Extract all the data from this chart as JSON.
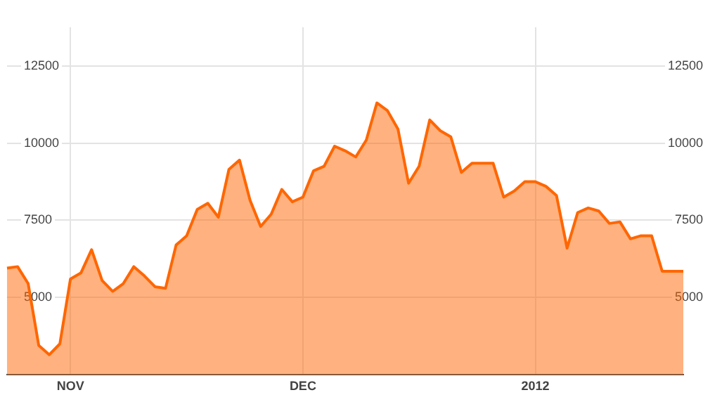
{
  "chart_data": {
    "type": "area",
    "categories": [
      null,
      null,
      null,
      null,
      null,
      null,
      "NOV",
      null,
      null,
      null,
      null,
      null,
      null,
      null,
      null,
      null,
      null,
      null,
      null,
      null,
      null,
      null,
      null,
      null,
      null,
      null,
      null,
      null,
      "DEC",
      null,
      null,
      null,
      null,
      null,
      null,
      null,
      null,
      null,
      null,
      null,
      null,
      null,
      null,
      null,
      null,
      null,
      null,
      null,
      null,
      null,
      "2012",
      null,
      null,
      null,
      null,
      null,
      null,
      null,
      null,
      null,
      null,
      null,
      null,
      null,
      null
    ],
    "series": [
      {
        "color": "#ff6600",
        "values": [
          5950,
          6000,
          5450,
          3450,
          3150,
          3500,
          5600,
          5800,
          6550,
          5550,
          5200,
          5450,
          6000,
          5700,
          5350,
          5300,
          6700,
          7000,
          7850,
          8050,
          7600,
          9150,
          9450,
          8150,
          7300,
          7700,
          8500,
          8100,
          8250,
          9100,
          9250,
          9900,
          9750,
          9550,
          10100,
          11300,
          11050,
          10450,
          8700,
          9250,
          10750,
          10400,
          10200,
          9050,
          9350,
          9350,
          9350,
          8250,
          8450,
          8750,
          8750,
          8600,
          8300,
          6600,
          7750,
          7900,
          7800,
          7400,
          7450,
          6900,
          7000,
          7000,
          5850,
          5850,
          5850
        ]
      }
    ],
    "ylim": [
      2500,
      13750
    ],
    "yticks": [
      5000,
      7500,
      10000,
      12500
    ],
    "y2lim": [
      2500,
      13750
    ],
    "y2ticks": [
      5000,
      7500,
      10000,
      12500
    ],
    "grid": true,
    "legend": false,
    "marker": "none"
  }
}
